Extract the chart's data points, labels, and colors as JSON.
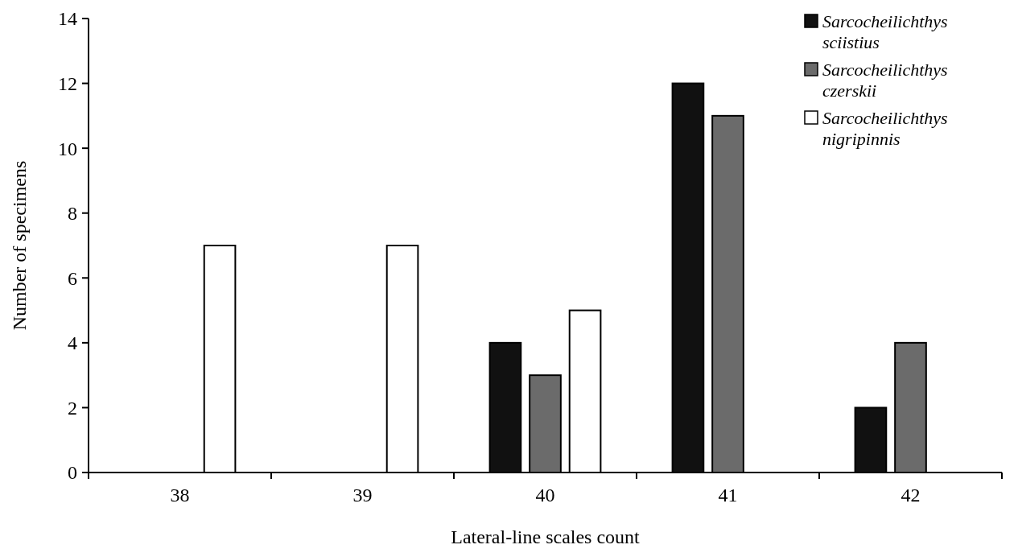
{
  "chart_data": {
    "type": "bar",
    "xlabel": "Lateral-line scales count",
    "ylabel": "Number of specimens",
    "categories": [
      "38",
      "39",
      "40",
      "41",
      "42"
    ],
    "series": [
      {
        "name": "Sarcocheilichthys sciistius",
        "color": "#111111",
        "values": [
          0,
          0,
          4,
          12,
          2
        ]
      },
      {
        "name": "Sarcocheilichthys czerskii",
        "color": "#6b6b6b",
        "values": [
          0,
          0,
          3,
          11,
          4
        ]
      },
      {
        "name": "Sarcocheilichthys nigripinnis",
        "color": "#ffffff",
        "values": [
          7,
          7,
          5,
          0,
          0
        ]
      }
    ],
    "ylim": [
      0,
      14
    ],
    "yticks": [
      0,
      2,
      4,
      6,
      8,
      10,
      12,
      14
    ],
    "grid": false,
    "legend": "top right"
  }
}
